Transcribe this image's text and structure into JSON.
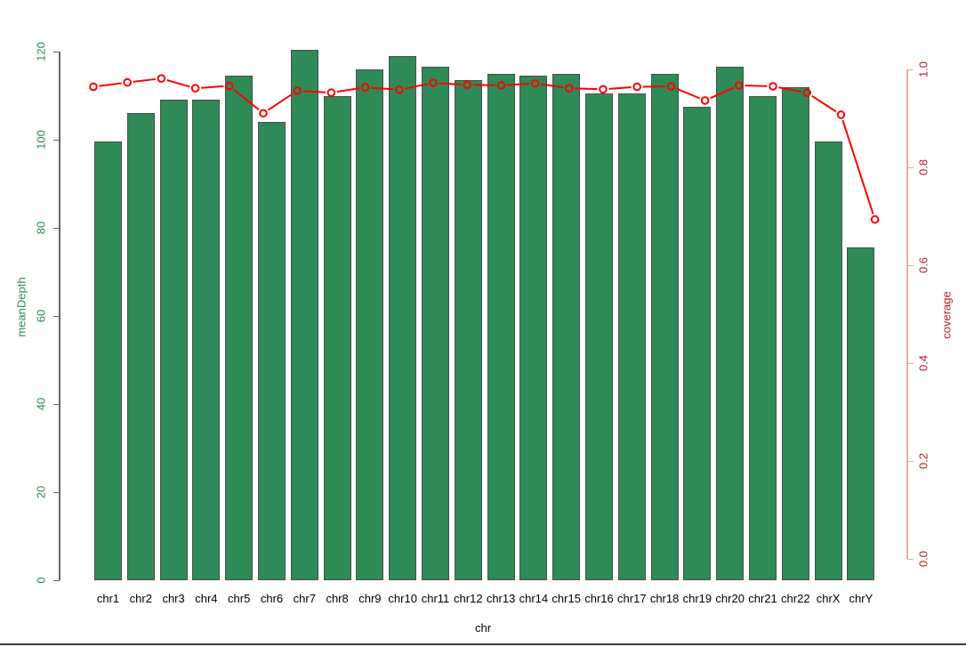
{
  "chart_data": {
    "type": "bar",
    "title": "",
    "categories": [
      "chr1",
      "chr2",
      "chr3",
      "chr4",
      "chr5",
      "chr6",
      "chr7",
      "chr8",
      "chr9",
      "chr10",
      "chr11",
      "chr12",
      "chr13",
      "chr14",
      "chr15",
      "chr16",
      "chr17",
      "chr18",
      "chr19",
      "chr20",
      "chr21",
      "chr22",
      "chrX",
      "chrY"
    ],
    "series": [
      {
        "name": "meanDepth",
        "type": "bar",
        "axis": "left",
        "color": "#2e8b57",
        "values": [
          99.5,
          106,
          109,
          109,
          114.5,
          104,
          120.5,
          110,
          116,
          119,
          116.5,
          113.5,
          115,
          114.5,
          115,
          110.5,
          110.5,
          115,
          107.5,
          116.5,
          110,
          112,
          99.5,
          75.5
        ]
      },
      {
        "name": "coverage",
        "type": "line",
        "axis": "right",
        "color": "#ff0000",
        "values": [
          0.965,
          0.974,
          0.982,
          0.962,
          0.967,
          0.911,
          0.957,
          0.953,
          0.964,
          0.959,
          0.973,
          0.969,
          0.968,
          0.972,
          0.962,
          0.96,
          0.965,
          0.966,
          0.937,
          0.968,
          0.966,
          0.953,
          0.908,
          0.694
        ]
      }
    ],
    "xlabel": "chr",
    "ylabel_left": "meanDepth",
    "ylabel_right": "coverage",
    "ylim_left": [
      0,
      120
    ],
    "ylim_right": [
      0.0,
      1.0
    ],
    "yticks_left": [
      "0",
      "20",
      "40",
      "60",
      "80",
      "100",
      "120"
    ],
    "yticks_right": [
      "0.0",
      "0.2",
      "0.4",
      "0.6",
      "0.8",
      "1.0"
    ],
    "grid": false,
    "legend": "none"
  },
  "colors": {
    "bar_fill": "#2e8b57",
    "bar_border": "#4d4d4d",
    "left_axis": "#666666",
    "left_labels": "#2e8b57",
    "right_axis": "#f0a8a2",
    "right_labels": "#b22222",
    "line": "#ff0000",
    "x_labels": "#000000",
    "bottom_divider": "#3c4043"
  }
}
